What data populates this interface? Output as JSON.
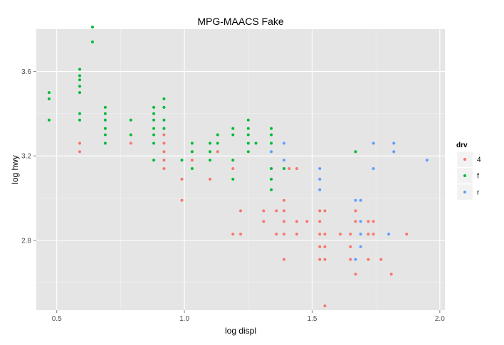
{
  "chart_data": {
    "type": "scatter",
    "title": "MPG-MAACS Fake",
    "xlabel": "log displ",
    "ylabel": "log hwy",
    "xlim": [
      0.42,
      2.02
    ],
    "ylim": [
      2.47,
      3.8
    ],
    "x_ticks": [
      0.5,
      1.0,
      1.5,
      2.0
    ],
    "x_tick_labels": [
      "0.5",
      "1.0",
      "1.5",
      "2.0"
    ],
    "y_ticks": [
      2.8,
      3.2,
      3.6
    ],
    "y_tick_labels": [
      "2.8",
      "3.2",
      "3.6"
    ],
    "grid": true,
    "legend": {
      "title": "drv",
      "position": "right",
      "entries": [
        "4",
        "f",
        "r"
      ]
    },
    "series": [
      {
        "name": "4",
        "color": "#F8766D",
        "points": [
          [
            0.59,
            3.26
          ],
          [
            0.59,
            3.22
          ],
          [
            0.79,
            3.26
          ],
          [
            0.92,
            3.33
          ],
          [
            0.92,
            3.3
          ],
          [
            0.92,
            3.26
          ],
          [
            0.92,
            3.22
          ],
          [
            0.92,
            3.18
          ],
          [
            0.92,
            3.14
          ],
          [
            0.99,
            3.09
          ],
          [
            0.99,
            2.99
          ],
          [
            1.03,
            3.22
          ],
          [
            1.03,
            3.18
          ],
          [
            1.1,
            3.09
          ],
          [
            1.13,
            3.22
          ],
          [
            1.19,
            3.14
          ],
          [
            1.19,
            2.83
          ],
          [
            1.22,
            2.94
          ],
          [
            1.22,
            2.83
          ],
          [
            1.31,
            2.94
          ],
          [
            1.31,
            2.89
          ],
          [
            1.36,
            2.94
          ],
          [
            1.36,
            2.83
          ],
          [
            1.39,
            2.99
          ],
          [
            1.39,
            2.94
          ],
          [
            1.39,
            2.89
          ],
          [
            1.39,
            2.83
          ],
          [
            1.39,
            2.71
          ],
          [
            1.41,
            3.14
          ],
          [
            1.44,
            3.14
          ],
          [
            1.44,
            2.89
          ],
          [
            1.44,
            2.83
          ],
          [
            1.48,
            2.89
          ],
          [
            1.53,
            2.94
          ],
          [
            1.53,
            2.89
          ],
          [
            1.53,
            2.83
          ],
          [
            1.53,
            2.77
          ],
          [
            1.53,
            2.71
          ],
          [
            1.55,
            2.94
          ],
          [
            1.55,
            2.83
          ],
          [
            1.55,
            2.77
          ],
          [
            1.55,
            2.71
          ],
          [
            1.55,
            2.49
          ],
          [
            1.61,
            2.83
          ],
          [
            1.65,
            2.83
          ],
          [
            1.65,
            2.77
          ],
          [
            1.65,
            2.71
          ],
          [
            1.67,
            2.94
          ],
          [
            1.67,
            2.89
          ],
          [
            1.67,
            2.64
          ],
          [
            1.72,
            2.89
          ],
          [
            1.72,
            2.83
          ],
          [
            1.72,
            2.71
          ],
          [
            1.74,
            2.89
          ],
          [
            1.74,
            2.83
          ],
          [
            1.77,
            2.71
          ],
          [
            1.81,
            2.64
          ],
          [
            1.87,
            2.83
          ]
        ]
      },
      {
        "name": "f",
        "color": "#00BA38",
        "points": [
          [
            0.47,
            3.5
          ],
          [
            0.47,
            3.47
          ],
          [
            0.47,
            3.37
          ],
          [
            0.59,
            3.61
          ],
          [
            0.59,
            3.58
          ],
          [
            0.59,
            3.56
          ],
          [
            0.59,
            3.53
          ],
          [
            0.59,
            3.5
          ],
          [
            0.59,
            3.4
          ],
          [
            0.59,
            3.37
          ],
          [
            0.64,
            3.81
          ],
          [
            0.64,
            3.74
          ],
          [
            0.69,
            3.43
          ],
          [
            0.69,
            3.4
          ],
          [
            0.69,
            3.37
          ],
          [
            0.69,
            3.33
          ],
          [
            0.69,
            3.3
          ],
          [
            0.69,
            3.26
          ],
          [
            0.79,
            3.37
          ],
          [
            0.79,
            3.3
          ],
          [
            0.88,
            3.43
          ],
          [
            0.88,
            3.4
          ],
          [
            0.88,
            3.37
          ],
          [
            0.88,
            3.33
          ],
          [
            0.88,
            3.3
          ],
          [
            0.88,
            3.26
          ],
          [
            0.88,
            3.18
          ],
          [
            0.92,
            3.47
          ],
          [
            0.92,
            3.43
          ],
          [
            0.92,
            3.37
          ],
          [
            0.92,
            3.33
          ],
          [
            0.99,
            3.18
          ],
          [
            1.03,
            3.26
          ],
          [
            1.03,
            3.22
          ],
          [
            1.03,
            3.14
          ],
          [
            1.1,
            3.26
          ],
          [
            1.1,
            3.22
          ],
          [
            1.1,
            3.18
          ],
          [
            1.13,
            3.3
          ],
          [
            1.13,
            3.26
          ],
          [
            1.19,
            3.33
          ],
          [
            1.19,
            3.3
          ],
          [
            1.19,
            3.18
          ],
          [
            1.19,
            3.09
          ],
          [
            1.25,
            3.37
          ],
          [
            1.25,
            3.33
          ],
          [
            1.25,
            3.3
          ],
          [
            1.25,
            3.26
          ],
          [
            1.25,
            3.22
          ],
          [
            1.28,
            3.26
          ],
          [
            1.34,
            3.33
          ],
          [
            1.34,
            3.3
          ],
          [
            1.34,
            3.26
          ],
          [
            1.34,
            3.14
          ],
          [
            1.34,
            3.09
          ],
          [
            1.34,
            3.04
          ],
          [
            1.39,
            3.14
          ],
          [
            1.67,
            3.22
          ]
        ]
      },
      {
        "name": "r",
        "color": "#619CFF",
        "points": [
          [
            1.34,
            3.22
          ],
          [
            1.39,
            3.26
          ],
          [
            1.39,
            3.18
          ],
          [
            1.53,
            3.14
          ],
          [
            1.53,
            3.09
          ],
          [
            1.53,
            3.04
          ],
          [
            1.67,
            2.99
          ],
          [
            1.67,
            2.71
          ],
          [
            1.69,
            2.99
          ],
          [
            1.69,
            2.89
          ],
          [
            1.69,
            2.83
          ],
          [
            1.69,
            2.77
          ],
          [
            1.74,
            3.26
          ],
          [
            1.74,
            3.14
          ],
          [
            1.8,
            2.83
          ],
          [
            1.82,
            3.26
          ],
          [
            1.82,
            3.22
          ],
          [
            1.95,
            3.18
          ]
        ]
      }
    ]
  }
}
